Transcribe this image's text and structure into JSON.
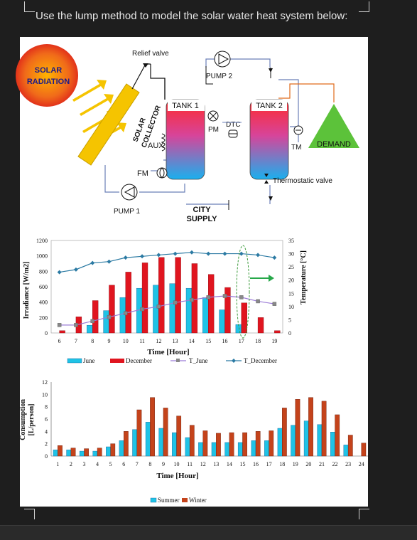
{
  "question": "Use the lump method to model the solar water heat system below:",
  "diagram": {
    "solar_radiation": [
      "SOLAR",
      "RADIATION"
    ],
    "relief_valve": "Relief valve",
    "pump2": "PUMP 2",
    "tank1": "TANK 1",
    "tank2": "TANK 2",
    "pm": "PM",
    "dtc": "DTC",
    "aux": "AUX",
    "fm": "FM",
    "tm": "TM",
    "demand": "DEMAND",
    "thermostatic_valve": "Thermostatic valve",
    "pump1": "PUMP 1",
    "city_supply": [
      "CITY",
      "SUPPLY"
    ],
    "collector": [
      "SOLAR",
      "COLLECTOR"
    ],
    "colors": {
      "sun": "#e8501a",
      "collector": "#f5c400",
      "arrows": "#f5c400",
      "tank_hot": "#e8303a",
      "tank_cold": "#1aa7e8",
      "demand": "#5cc23a"
    }
  },
  "chart_data": [
    {
      "type": "bar",
      "categories": [
        "6",
        "7",
        "8",
        "9",
        "10",
        "11",
        "12",
        "13",
        "14",
        "15",
        "16",
        "17",
        "18",
        "19"
      ],
      "series": [
        {
          "name": "June",
          "values": [
            0,
            0,
            100,
            290,
            460,
            580,
            620,
            640,
            580,
            460,
            300,
            110,
            0,
            0
          ]
        },
        {
          "name": "December",
          "values": [
            30,
            210,
            420,
            620,
            790,
            910,
            980,
            980,
            900,
            760,
            590,
            390,
            200,
            30
          ]
        }
      ],
      "lines": [
        {
          "name": "T_June",
          "values": [
            3,
            3,
            4.5,
            6,
            7.5,
            9,
            10,
            11.5,
            12.5,
            13.5,
            14,
            13.5,
            12,
            11
          ]
        },
        {
          "name": "T_December",
          "values": [
            23,
            24,
            26.5,
            27,
            28.5,
            29,
            29.5,
            30,
            30.5,
            30,
            30,
            30,
            29.5,
            28.5
          ]
        }
      ],
      "xlabel": "Time [Hour]",
      "ylabel": "Irradiance [W/m2]",
      "y2label": "Temperature [°C]",
      "ylim": [
        0,
        1200
      ],
      "yticks": [
        "0",
        "200",
        "400",
        "600",
        "800",
        "1000",
        "1200"
      ],
      "y2lim": [
        0,
        35
      ],
      "y2ticks": [
        "0",
        "5",
        "10",
        "15",
        "20",
        "25",
        "30",
        "35"
      ],
      "legend": [
        "June",
        "December",
        "T_June",
        "T_December"
      ],
      "colors": {
        "June": "#1fc3e6",
        "December": "#e0151f",
        "T_June": "#9a7ad6",
        "T_December": "#2b7aa3"
      }
    },
    {
      "type": "bar",
      "categories": [
        "1",
        "2",
        "3",
        "4",
        "5",
        "6",
        "7",
        "8",
        "9",
        "10",
        "11",
        "12",
        "13",
        "14",
        "15",
        "16",
        "17",
        "18",
        "19",
        "20",
        "21",
        "22",
        "23",
        "24"
      ],
      "series": [
        {
          "name": "Summer",
          "values": [
            1,
            1,
            0.8,
            0.8,
            1.5,
            2.5,
            4.3,
            5.5,
            4.5,
            3.8,
            3,
            2.2,
            2.2,
            2.2,
            2.2,
            2.5,
            2.5,
            4.5,
            5,
            5.7,
            5.1,
            3.9,
            1.8,
            0
          ]
        },
        {
          "name": "Winter",
          "values": [
            1.7,
            1.3,
            1.2,
            1.3,
            2,
            4,
            7.5,
            9.5,
            7.8,
            6.5,
            5,
            4.1,
            3.7,
            3.8,
            3.8,
            4,
            4.1,
            7.8,
            9.2,
            9.5,
            8.9,
            6.7,
            3.4,
            2.1
          ]
        }
      ],
      "xlabel": "Time [Hour]",
      "ylabel": "Consumption [L/person]",
      "ylim": [
        0,
        12
      ],
      "yticks": [
        "0",
        "2",
        "4",
        "6",
        "8",
        "10",
        "12"
      ],
      "legend": [
        "Summer",
        "Winter"
      ],
      "colors": {
        "Summer": "#1fc3e6",
        "Winter": "#c4431b"
      }
    }
  ]
}
